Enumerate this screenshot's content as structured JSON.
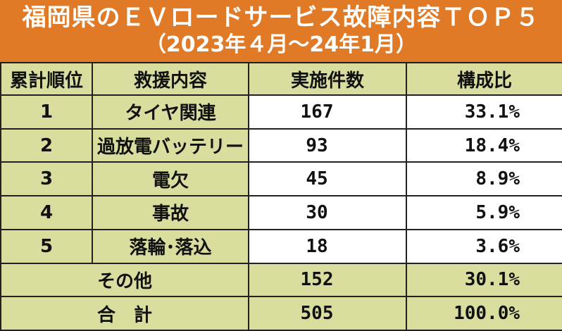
{
  "title": {
    "line1": "福岡県のＥＶロードサービス故障内容ＴＯＰ５",
    "line2": "（2023年４月〜24年1月）"
  },
  "table": {
    "headers": [
      "累計順位",
      "救援内容",
      "実施件数",
      "構成比"
    ],
    "rows": [
      {
        "rank": "1",
        "item": "タイヤ関連",
        "count": "167",
        "ratio": "33.1%"
      },
      {
        "rank": "2",
        "item": "過放電バッテリー",
        "count": "93",
        "ratio": "18.4%"
      },
      {
        "rank": "3",
        "item": "電欠",
        "count": "45",
        "ratio": "8.9%"
      },
      {
        "rank": "4",
        "item": "事故",
        "count": "30",
        "ratio": "5.9%"
      },
      {
        "rank": "5",
        "item": "落輪･落込",
        "count": "18",
        "ratio": "3.6%"
      }
    ],
    "other": {
      "label": "その他",
      "count": "152",
      "ratio": "30.1%"
    },
    "total": {
      "label": "合　計",
      "count": "505",
      "ratio": "100.0%"
    }
  },
  "colors": {
    "title_bg": "#e07a26",
    "cell_green": "#d9de9e",
    "border": "#222222"
  }
}
